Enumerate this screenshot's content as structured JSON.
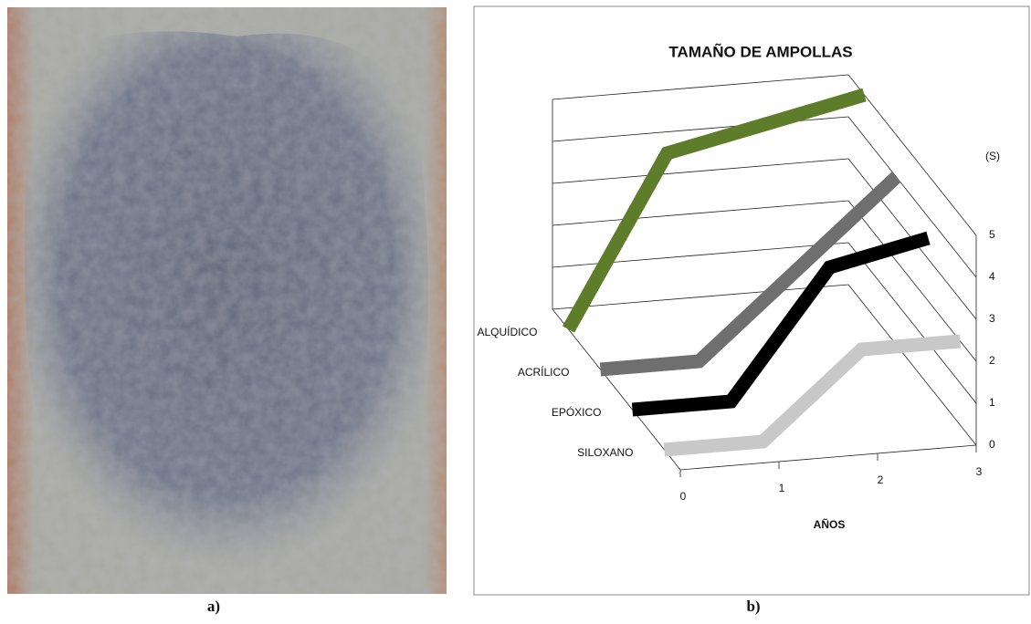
{
  "panel_labels": [
    "a)",
    "b)"
  ],
  "chart_data": {
    "type": "line3d",
    "title": "TAMAÑO DE AMPOLLAS",
    "x_label": "AÑOS",
    "y_label": "(S)",
    "categories": [
      0,
      1,
      2,
      3
    ],
    "series": [
      {
        "name": "ALQUÍDICO",
        "color": "#5e7d2b",
        "values": [
          0,
          4,
          4.5,
          5
        ]
      },
      {
        "name": "ACRÍLICO",
        "color": "#6f6f6f",
        "values": [
          0,
          0,
          2,
          4
        ]
      },
      {
        "name": "EPÓXICO",
        "color": "#000000",
        "values": [
          0,
          0,
          3,
          3.5
        ]
      },
      {
        "name": "SILOXANO",
        "color": "#c8c8c8",
        "values": [
          0,
          0,
          2,
          2
        ]
      }
    ],
    "ylim": [
      0,
      5
    ],
    "yticks": [
      0,
      1,
      2,
      3,
      4,
      5
    ],
    "grid": true
  }
}
